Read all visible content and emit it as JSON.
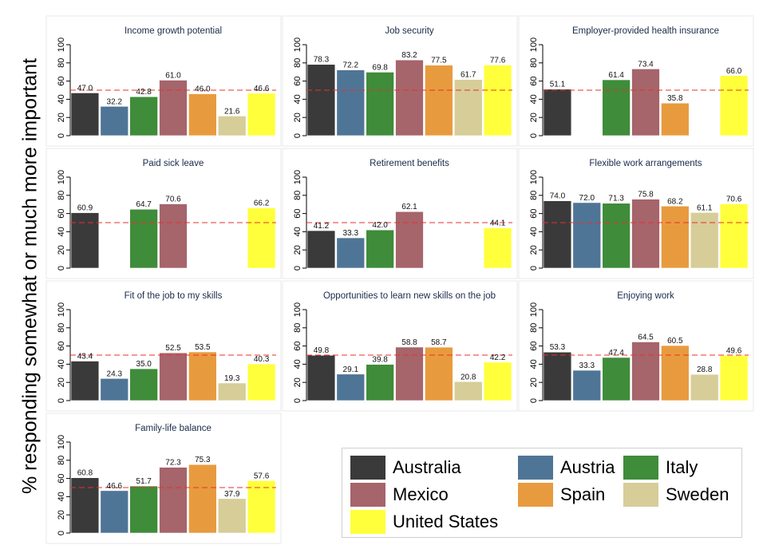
{
  "y_axis_label": "% responding somewhat or much more important",
  "chart_data": {
    "type": "bar",
    "ylim": [
      0,
      100
    ],
    "yticks": [
      0,
      20,
      40,
      60,
      80,
      100
    ],
    "reference_line": 50,
    "countries": [
      "Australia",
      "Austria",
      "Italy",
      "Mexico",
      "Spain",
      "Sweden",
      "United States"
    ],
    "colors": [
      "#3a3a3a",
      "#4f7596",
      "#3f8c3a",
      "#a6646b",
      "#e89b3e",
      "#d6cd98",
      "#ffff3b"
    ],
    "reference_line_color": "#e8302c",
    "panels": [
      {
        "title": "Income growth potential",
        "values": [
          47.0,
          32.2,
          42.8,
          61.0,
          46.0,
          21.6,
          46.6
        ]
      },
      {
        "title": "Job security",
        "values": [
          78.3,
          72.2,
          69.8,
          83.2,
          77.5,
          61.7,
          77.6
        ]
      },
      {
        "title": "Employer-provided health insurance",
        "values": [
          51.1,
          null,
          61.4,
          73.4,
          35.8,
          null,
          66.0
        ]
      },
      {
        "title": "Paid sick leave",
        "values": [
          60.9,
          null,
          64.7,
          70.6,
          null,
          null,
          66.2
        ]
      },
      {
        "title": "Retirement benefits",
        "values": [
          41.2,
          33.3,
          42.0,
          62.1,
          null,
          null,
          44.1
        ]
      },
      {
        "title": "Flexible work arrangements",
        "values": [
          74.0,
          72.0,
          71.3,
          75.8,
          68.2,
          61.1,
          70.6
        ]
      },
      {
        "title": "Fit of the job to my skills",
        "values": [
          43.4,
          24.3,
          35.0,
          52.5,
          53.5,
          19.3,
          40.3
        ]
      },
      {
        "title": "Opportunities to learn new skills on the job",
        "values": [
          49.8,
          29.1,
          39.8,
          58.8,
          58.7,
          20.8,
          42.2
        ]
      },
      {
        "title": "Enjoying work",
        "values": [
          53.3,
          33.3,
          47.4,
          64.5,
          60.5,
          28.8,
          49.6
        ]
      },
      {
        "title": "Family-life balance",
        "values": [
          60.8,
          46.6,
          51.7,
          72.3,
          75.3,
          37.9,
          57.6
        ]
      }
    ]
  }
}
